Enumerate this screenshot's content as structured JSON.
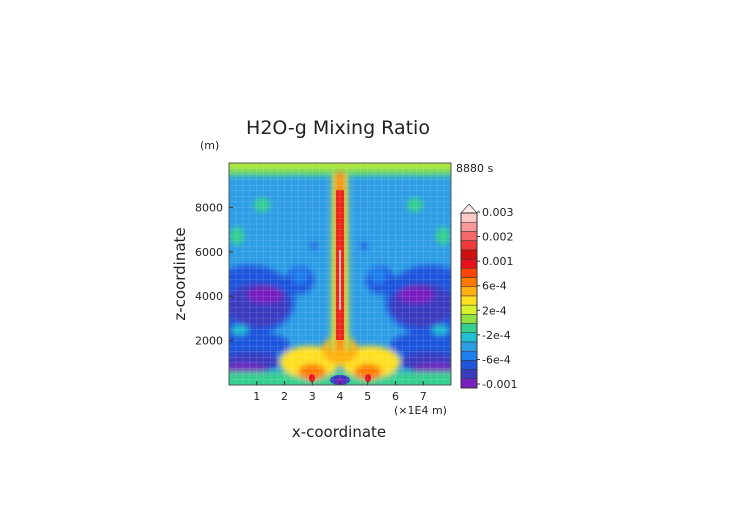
{
  "chart_data": {
    "type": "heatmap",
    "title": "H2O-g Mixing Ratio",
    "xlabel": "x-coordinate",
    "ylabel": "z-coordinate",
    "y_unit": "(m)",
    "x_unit": "(×1E4 m)",
    "time_label": "8880 s",
    "x_ticks": [
      "1",
      "2",
      "3",
      "4",
      "5",
      "6",
      "7"
    ],
    "y_ticks": [
      "2000",
      "4000",
      "6000",
      "8000"
    ],
    "xlim": [
      0,
      8
    ],
    "ylim": [
      0,
      10000
    ],
    "grid": true,
    "colorbar_labels": [
      "0.003",
      "0.002",
      "0.001",
      "6e-4",
      "2e-4",
      "-2e-4",
      "-6e-4",
      "-0.001"
    ],
    "colors": {
      "background": "#2d9de6",
      "levels": [
        "#7a1fbf",
        "#3a3bbf",
        "#1f55dd",
        "#1e7fef",
        "#2d9de6",
        "#1fc0d2",
        "#35d08f",
        "#8fe040",
        "#d8f230",
        "#ffe020",
        "#ffb010",
        "#ff7a00",
        "#ff4500",
        "#e8101a",
        "#d01010",
        "#f03a3a",
        "#f56868",
        "#f89898",
        "#ffc8c8"
      ]
    }
  }
}
